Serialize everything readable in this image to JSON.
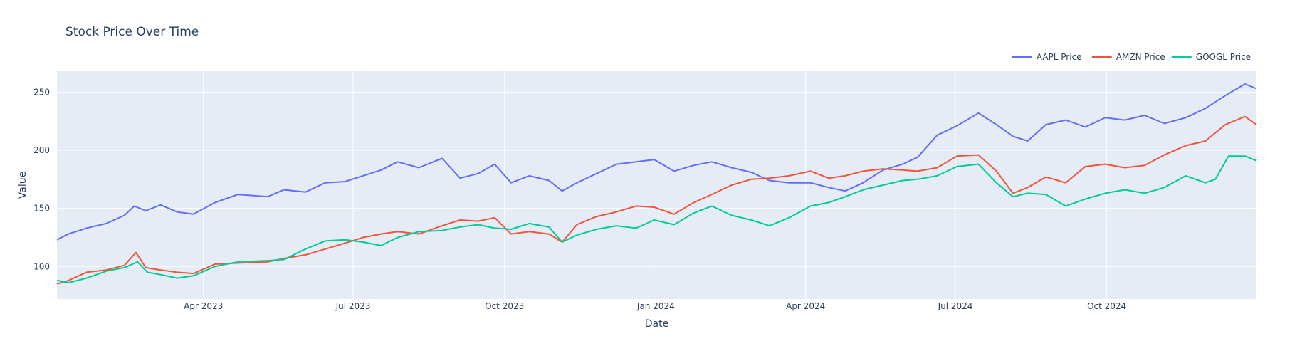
{
  "chart_data": {
    "type": "line",
    "title": "Stock Price Over Time",
    "xlabel": "Date",
    "ylabel": "Value",
    "x_ticks": [
      {
        "date": "2023-04-01",
        "label": "Apr 2023"
      },
      {
        "date": "2023-07-01",
        "label": "Jul 2023"
      },
      {
        "date": "2023-10-01",
        "label": "Oct 2023"
      },
      {
        "date": "2024-01-01",
        "label": "Jan 2024"
      },
      {
        "date": "2024-04-01",
        "label": "Apr 2024"
      },
      {
        "date": "2024-07-01",
        "label": "Jul 2024"
      },
      {
        "date": "2024-10-01",
        "label": "Oct 2024"
      }
    ],
    "y_ticks": [
      100,
      150,
      200,
      250
    ],
    "xlim": [
      "2023-01-02",
      "2024-12-31"
    ],
    "ylim": [
      72,
      268
    ],
    "grid": true,
    "legend_position": "top-right",
    "background_color": "#e5ecf6",
    "series": [
      {
        "name": "AAPL Price",
        "color": "#636efa",
        "points": [
          [
            "2023-01-02",
            123
          ],
          [
            "2023-01-09",
            128
          ],
          [
            "2023-01-20",
            133
          ],
          [
            "2023-02-01",
            137
          ],
          [
            "2023-02-12",
            144
          ],
          [
            "2023-02-18",
            152
          ],
          [
            "2023-02-25",
            148
          ],
          [
            "2023-03-06",
            153
          ],
          [
            "2023-03-16",
            147
          ],
          [
            "2023-03-26",
            145
          ],
          [
            "2023-04-08",
            155
          ],
          [
            "2023-04-22",
            162
          ],
          [
            "2023-05-10",
            160
          ],
          [
            "2023-05-20",
            166
          ],
          [
            "2023-06-02",
            164
          ],
          [
            "2023-06-14",
            172
          ],
          [
            "2023-06-26",
            173
          ],
          [
            "2023-07-07",
            178
          ],
          [
            "2023-07-18",
            183
          ],
          [
            "2023-07-28",
            190
          ],
          [
            "2023-08-10",
            185
          ],
          [
            "2023-08-24",
            193
          ],
          [
            "2023-09-04",
            176
          ],
          [
            "2023-09-15",
            180
          ],
          [
            "2023-09-25",
            188
          ],
          [
            "2023-10-05",
            172
          ],
          [
            "2023-10-16",
            178
          ],
          [
            "2023-10-28",
            174
          ],
          [
            "2023-11-05",
            165
          ],
          [
            "2023-11-14",
            172
          ],
          [
            "2023-11-26",
            180
          ],
          [
            "2023-12-08",
            188
          ],
          [
            "2023-12-20",
            190
          ],
          [
            "2023-12-31",
            192
          ],
          [
            "2024-01-12",
            182
          ],
          [
            "2024-01-24",
            187
          ],
          [
            "2024-02-04",
            190
          ],
          [
            "2024-02-16",
            185
          ],
          [
            "2024-02-28",
            181
          ],
          [
            "2024-03-10",
            174
          ],
          [
            "2024-03-22",
            172
          ],
          [
            "2024-04-04",
            172
          ],
          [
            "2024-04-15",
            168
          ],
          [
            "2024-04-25",
            165
          ],
          [
            "2024-05-06",
            172
          ],
          [
            "2024-05-18",
            183
          ],
          [
            "2024-05-30",
            188
          ],
          [
            "2024-06-08",
            194
          ],
          [
            "2024-06-20",
            213
          ],
          [
            "2024-07-02",
            221
          ],
          [
            "2024-07-15",
            232
          ],
          [
            "2024-07-26",
            222
          ],
          [
            "2024-08-05",
            212
          ],
          [
            "2024-08-14",
            208
          ],
          [
            "2024-08-25",
            222
          ],
          [
            "2024-09-06",
            226
          ],
          [
            "2024-09-18",
            220
          ],
          [
            "2024-09-30",
            228
          ],
          [
            "2024-10-12",
            226
          ],
          [
            "2024-10-24",
            230
          ],
          [
            "2024-11-05",
            223
          ],
          [
            "2024-11-18",
            228
          ],
          [
            "2024-11-30",
            236
          ],
          [
            "2024-12-12",
            247
          ],
          [
            "2024-12-24",
            257
          ],
          [
            "2024-12-31",
            253
          ]
        ]
      },
      {
        "name": "AMZN Price",
        "color": "#ef553b",
        "points": [
          [
            "2023-01-02",
            85
          ],
          [
            "2023-01-09",
            88
          ],
          [
            "2023-01-20",
            95
          ],
          [
            "2023-02-01",
            97
          ],
          [
            "2023-02-12",
            101
          ],
          [
            "2023-02-19",
            112
          ],
          [
            "2023-02-25",
            99
          ],
          [
            "2023-03-06",
            97
          ],
          [
            "2023-03-16",
            95
          ],
          [
            "2023-03-26",
            94
          ],
          [
            "2023-04-08",
            102
          ],
          [
            "2023-04-22",
            103
          ],
          [
            "2023-05-10",
            104
          ],
          [
            "2023-05-20",
            107
          ],
          [
            "2023-06-02",
            110
          ],
          [
            "2023-06-14",
            115
          ],
          [
            "2023-06-26",
            120
          ],
          [
            "2023-07-07",
            125
          ],
          [
            "2023-07-18",
            128
          ],
          [
            "2023-07-28",
            130
          ],
          [
            "2023-08-10",
            128
          ],
          [
            "2023-08-24",
            135
          ],
          [
            "2023-09-04",
            140
          ],
          [
            "2023-09-15",
            139
          ],
          [
            "2023-09-25",
            142
          ],
          [
            "2023-10-05",
            128
          ],
          [
            "2023-10-16",
            130
          ],
          [
            "2023-10-28",
            128
          ],
          [
            "2023-11-05",
            121
          ],
          [
            "2023-11-14",
            136
          ],
          [
            "2023-11-26",
            143
          ],
          [
            "2023-12-08",
            147
          ],
          [
            "2023-12-20",
            152
          ],
          [
            "2023-12-31",
            151
          ],
          [
            "2024-01-12",
            145
          ],
          [
            "2024-01-24",
            155
          ],
          [
            "2024-02-04",
            162
          ],
          [
            "2024-02-16",
            170
          ],
          [
            "2024-02-28",
            175
          ],
          [
            "2024-03-10",
            176
          ],
          [
            "2024-03-22",
            178
          ],
          [
            "2024-04-04",
            182
          ],
          [
            "2024-04-15",
            176
          ],
          [
            "2024-04-25",
            178
          ],
          [
            "2024-05-06",
            182
          ],
          [
            "2024-05-18",
            184
          ],
          [
            "2024-05-30",
            183
          ],
          [
            "2024-06-08",
            182
          ],
          [
            "2024-06-20",
            185
          ],
          [
            "2024-07-02",
            195
          ],
          [
            "2024-07-15",
            196
          ],
          [
            "2024-07-26",
            182
          ],
          [
            "2024-08-05",
            163
          ],
          [
            "2024-08-14",
            168
          ],
          [
            "2024-08-25",
            177
          ],
          [
            "2024-09-06",
            172
          ],
          [
            "2024-09-18",
            186
          ],
          [
            "2024-09-30",
            188
          ],
          [
            "2024-10-12",
            185
          ],
          [
            "2024-10-24",
            187
          ],
          [
            "2024-11-05",
            196
          ],
          [
            "2024-11-18",
            204
          ],
          [
            "2024-11-30",
            208
          ],
          [
            "2024-12-12",
            222
          ],
          [
            "2024-12-24",
            229
          ],
          [
            "2024-12-31",
            222
          ]
        ]
      },
      {
        "name": "GOOGL Price",
        "color": "#00cc96",
        "points": [
          [
            "2023-01-02",
            88
          ],
          [
            "2023-01-09",
            86
          ],
          [
            "2023-01-20",
            90
          ],
          [
            "2023-02-01",
            96
          ],
          [
            "2023-02-12",
            99
          ],
          [
            "2023-02-20",
            104
          ],
          [
            "2023-02-26",
            95
          ],
          [
            "2023-03-06",
            93
          ],
          [
            "2023-03-16",
            90
          ],
          [
            "2023-03-26",
            92
          ],
          [
            "2023-04-08",
            100
          ],
          [
            "2023-04-22",
            104
          ],
          [
            "2023-05-10",
            105
          ],
          [
            "2023-05-20",
            106
          ],
          [
            "2023-06-02",
            115
          ],
          [
            "2023-06-14",
            122
          ],
          [
            "2023-06-26",
            123
          ],
          [
            "2023-07-07",
            121
          ],
          [
            "2023-07-18",
            118
          ],
          [
            "2023-07-28",
            125
          ],
          [
            "2023-08-10",
            130
          ],
          [
            "2023-08-24",
            131
          ],
          [
            "2023-09-04",
            134
          ],
          [
            "2023-09-15",
            136
          ],
          [
            "2023-09-25",
            133
          ],
          [
            "2023-10-05",
            132
          ],
          [
            "2023-10-16",
            137
          ],
          [
            "2023-10-28",
            134
          ],
          [
            "2023-11-05",
            121
          ],
          [
            "2023-11-14",
            127
          ],
          [
            "2023-11-26",
            132
          ],
          [
            "2023-12-08",
            135
          ],
          [
            "2023-12-20",
            133
          ],
          [
            "2023-12-31",
            140
          ],
          [
            "2024-01-12",
            136
          ],
          [
            "2024-01-24",
            146
          ],
          [
            "2024-02-04",
            152
          ],
          [
            "2024-02-16",
            144
          ],
          [
            "2024-02-28",
            140
          ],
          [
            "2024-03-10",
            135
          ],
          [
            "2024-03-22",
            142
          ],
          [
            "2024-04-04",
            152
          ],
          [
            "2024-04-15",
            155
          ],
          [
            "2024-04-25",
            160
          ],
          [
            "2024-05-06",
            166
          ],
          [
            "2024-05-18",
            170
          ],
          [
            "2024-05-30",
            174
          ],
          [
            "2024-06-08",
            175
          ],
          [
            "2024-06-20",
            178
          ],
          [
            "2024-07-02",
            186
          ],
          [
            "2024-07-15",
            188
          ],
          [
            "2024-07-26",
            172
          ],
          [
            "2024-08-05",
            160
          ],
          [
            "2024-08-14",
            163
          ],
          [
            "2024-08-25",
            162
          ],
          [
            "2024-09-06",
            152
          ],
          [
            "2024-09-18",
            158
          ],
          [
            "2024-09-30",
            163
          ],
          [
            "2024-10-12",
            166
          ],
          [
            "2024-10-24",
            163
          ],
          [
            "2024-11-05",
            168
          ],
          [
            "2024-11-18",
            178
          ],
          [
            "2024-11-30",
            172
          ],
          [
            "2024-12-06",
            175
          ],
          [
            "2024-12-14",
            195
          ],
          [
            "2024-12-24",
            195
          ],
          [
            "2024-12-31",
            191
          ]
        ]
      }
    ]
  }
}
